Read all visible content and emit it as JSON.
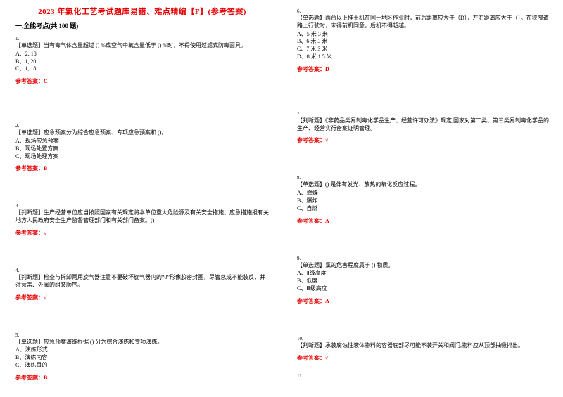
{
  "title": "2023 年氯化工艺考试题库易错、难点精编【F】(参考答案)",
  "section_head": "一.全能考点(共 100 题)",
  "colors": {
    "title": "#e60000",
    "answer": "#e60000",
    "text": "#000000",
    "background": "#ffffff"
  },
  "font_sizes": {
    "title": 11,
    "section": 9,
    "body": 8,
    "qnum": 7
  },
  "left": [
    {
      "num": "1.",
      "stem": "【单选题】当有毒气体含量超过 () %或空气中氧含量低于 () %时，不得使用过滤式防毒面具。",
      "opts": [
        "A、2, 18",
        "B、1, 20",
        "C、1, 18"
      ],
      "ans": "参考答案：C"
    },
    {
      "num": "2.",
      "stem": "【单选题】应急预案分为综合应急预案、专项应急预案和 ()。",
      "opts": [
        "A、现场应急预案",
        "B、现场处置方案",
        "C、现场处理方案"
      ],
      "ans": "参考答案：B"
    },
    {
      "num": "3.",
      "stem": "【判断题】生产经营单位应当按照国家有关规定将本单位重大危险源及有关安全措施、应急措施报有关地方人民政府安全生产监督管理部门和有关部门备案。()",
      "opts": [],
      "ans": "参考答案：√"
    },
    {
      "num": "4.",
      "stem": "【判断题】检查与拆卸两用旋气器注意不要破坏旋气器内的“0”形像胶密封圈，尽管总成不能装反，并注意盖、外阀的组装顺序。",
      "opts": [],
      "ans": "参考答案：√"
    },
    {
      "num": "5.",
      "stem": "【单选题】应急预案演练根据 () 分为综合演练和专项演练。",
      "opts": [
        "A、演练形式",
        "B、演练内容",
        "C、演练目的"
      ],
      "ans": "参考答案：B"
    }
  ],
  "right": [
    {
      "num": "6.",
      "stem": "【单选题】两台以上推土机在同一地区作业时，前后距离应大于（D），左右距离应大于（）。在狭窄道路上行驶时，未得前机同意，后机不得超越。",
      "opts": [
        "A、5 米 3 米",
        "B、6 米 3 米",
        "C、7 米 3 米",
        "D、8 米 1.5 米"
      ],
      "ans": "参考答案：D"
    },
    {
      "num": "7.",
      "stem": "【判断题】《非药品类易制毒化学品生产、经营许可办法》规定,国家对第二类、第三类易制毒化学品的生产、经营实行备案证明管理。",
      "opts": [],
      "ans": "参考答案：√"
    },
    {
      "num": "8.",
      "stem": "【单选题】() 是伴有发光、放热的氧化反应过程。",
      "opts": [
        "A、燃烧",
        "B、爆炸",
        "C、自燃"
      ],
      "ans": "参考答案：A"
    },
    {
      "num": "9.",
      "stem": "【单选题】氯的危害程度属于 () 物质。",
      "opts": [
        "A、Ⅱ级高度",
        "B、低度",
        "C、Ⅲ级高度"
      ],
      "ans": "参考答案：A"
    },
    {
      "num": "10.",
      "stem": "【判断题】承装腐蚀性液体物料的容器底部尽可能不装开关和阀门,物料应从顶部抽吸排出。",
      "opts": [],
      "ans": "参考答案：√"
    },
    {
      "num": "11.",
      "stem": "",
      "opts": [],
      "ans": ""
    }
  ]
}
